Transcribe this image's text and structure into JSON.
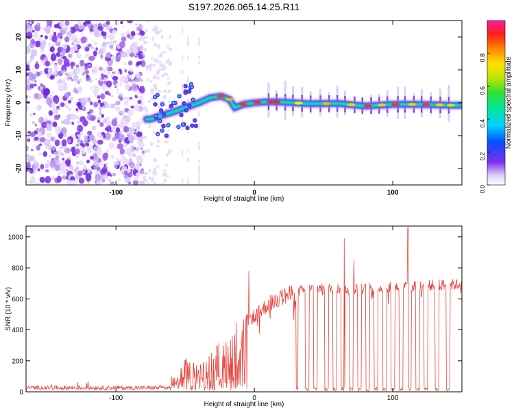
{
  "chart_data": [
    {
      "type": "heatmap",
      "title": "S197.2026.065.14.25.R11",
      "xlabel": "Height of straight line (km)",
      "ylabel": "Frequency (Hz)",
      "xlim": [
        -165,
        150
      ],
      "ylim": [
        -25,
        25
      ],
      "xticks": [
        -100,
        0,
        100
      ],
      "xtick_labels": [
        "-100",
        "0",
        "100"
      ],
      "yticks": [
        -20,
        -10,
        0,
        10,
        20
      ],
      "ytick_labels": [
        "-20",
        "-10",
        "0",
        "10",
        "20"
      ],
      "colorbar": {
        "label": "Normalized spectral amplitude",
        "range": [
          0,
          1
        ],
        "ticks": [
          0.0,
          0.2,
          0.4,
          0.6,
          0.8
        ],
        "tick_labels": [
          "0.0",
          "0.2",
          "0.4",
          "0.6",
          "0.8"
        ]
      },
      "ridge": {
        "description_points_x_km": [
          -75,
          -68,
          -60,
          -50,
          -40,
          -32,
          -24,
          -18,
          -14,
          -8,
          0,
          10,
          20,
          40,
          60,
          80,
          100,
          120,
          145
        ],
        "freq_hz": [
          -5,
          -4,
          -3,
          -1.5,
          0,
          1.5,
          2,
          1,
          -1.5,
          -0.5,
          0,
          0.3,
          0.2,
          -0.3,
          -0.2,
          -1,
          -0.5,
          -0.5,
          -0.8
        ]
      }
    },
    {
      "type": "line",
      "title": "",
      "xlabel": "Height of straight line (km)",
      "ylabel": "SNR (10 * v/v)",
      "xlim": [
        -165,
        150
      ],
      "ylim": [
        0,
        1070
      ],
      "xticks": [
        -100,
        0,
        100
      ],
      "xtick_labels": [
        "-100",
        "0",
        "100"
      ],
      "yticks": [
        0,
        200,
        400,
        600,
        800,
        1000
      ],
      "ytick_labels": [
        "0",
        "200",
        "400",
        "600",
        "800",
        "1000"
      ],
      "series": [
        {
          "name": "SNR",
          "color": "#e8403a",
          "envelope_x_km": [
            -165,
            -80,
            -60,
            -50,
            -40,
            -30,
            -20,
            -10,
            -5,
            0,
            10,
            20,
            30,
            40,
            60,
            80,
            100,
            120,
            150
          ],
          "envelope_snr": [
            25,
            25,
            30,
            200,
            180,
            250,
            350,
            450,
            500,
            520,
            600,
            650,
            680,
            700,
            700,
            700,
            710,
            720,
            730
          ],
          "dropouts_x_km": [
            30,
            38,
            44,
            52,
            58,
            64,
            70,
            76,
            82,
            88,
            94,
            100,
            106,
            112,
            118,
            124,
            132,
            140
          ],
          "spikes": [
            {
              "x": -4,
              "snr": 780
            },
            {
              "x": 65,
              "snr": 990
            },
            {
              "x": 72,
              "snr": 850
            },
            {
              "x": 111,
              "snr": 1060
            }
          ]
        }
      ]
    }
  ]
}
